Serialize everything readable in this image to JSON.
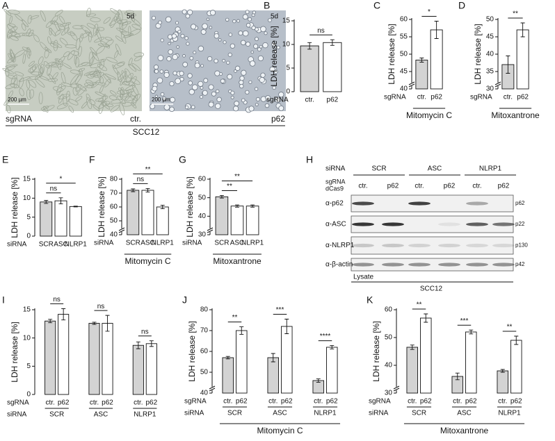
{
  "micrograph": {
    "panel": "A",
    "images": [
      {
        "time": "5d",
        "scale": "200 µm"
      },
      {
        "time": "5d",
        "scale": "200 µm"
      }
    ],
    "row_label": "sgRNA",
    "labels": [
      "ctr.",
      "p62"
    ],
    "cell_line": "SCC12"
  },
  "blot": {
    "panel": "H",
    "sirna_label": "siRNA",
    "sirna": [
      "SCR",
      "ASC",
      "NLRP1"
    ],
    "sgrna_label": [
      "sgRNA",
      "dCas9"
    ],
    "sgrna": [
      "ctr.",
      "p62",
      "ctr.",
      "p62",
      "ctr.",
      "p62"
    ],
    "rows": [
      {
        "antibody": "α-p62",
        "size": "p62"
      },
      {
        "antibody": "α-ASC",
        "size": "p22"
      },
      {
        "antibody": "α-NLRP1",
        "size": "p130"
      },
      {
        "antibody": "α-β-actin",
        "size": "p42"
      }
    ],
    "fraction": "Lysate",
    "cell_line": "SCC12"
  },
  "chart_data": [
    {
      "type": "bar",
      "panel": "B",
      "ylabel": "LDH release [%]",
      "row_label": "sgRNA",
      "categories": [
        "ctr.",
        "p62"
      ],
      "values": [
        9.7,
        10.4
      ],
      "errors": [
        0.7,
        0.6
      ],
      "colors": [
        "#d3d3d3",
        "#ffffff"
      ],
      "ylim": [
        0,
        15
      ],
      "yticks": [
        0,
        5,
        10,
        15
      ],
      "annotations": [
        "ns"
      ]
    },
    {
      "type": "bar",
      "panel": "C",
      "ylabel": "LDH release [%]",
      "row_label": "sgRNA",
      "categories": [
        "ctr.",
        "p62"
      ],
      "values": [
        48.3,
        57
      ],
      "errors": [
        0.6,
        2.5
      ],
      "colors": [
        "#d3d3d3",
        "#ffffff"
      ],
      "ylim": [
        40,
        60
      ],
      "yticks": [
        40,
        45,
        50,
        55,
        60
      ],
      "axis_break": true,
      "caption": "Mitomycin C",
      "annotations": [
        "*"
      ]
    },
    {
      "type": "bar",
      "panel": "D",
      "ylabel": "LDH release [%]",
      "row_label": "sgRNA",
      "categories": [
        "ctr.",
        "p62"
      ],
      "values": [
        37,
        47
      ],
      "errors": [
        2.5,
        2
      ],
      "colors": [
        "#d3d3d3",
        "#ffffff"
      ],
      "ylim": [
        30,
        50
      ],
      "yticks": [
        30,
        35,
        40,
        45,
        50
      ],
      "axis_break": true,
      "caption": "Mitoxantrone",
      "annotations": [
        "**"
      ]
    },
    {
      "type": "bar",
      "panel": "E",
      "ylabel": "LDH release [%]",
      "row_label": "siRNA",
      "categories": [
        "SCR",
        "ASC",
        "NLRP1"
      ],
      "values": [
        9,
        9.3,
        7.8
      ],
      "errors": [
        0.4,
        0.8,
        0.1
      ],
      "colors": [
        "#d3d3d3",
        "#ffffff",
        "#ffffff"
      ],
      "ylim": [
        0,
        15
      ],
      "yticks": [
        0,
        5,
        10,
        15
      ],
      "annotations": [
        "ns",
        "*"
      ]
    },
    {
      "type": "bar",
      "panel": "F",
      "ylabel": "LDH release [%]",
      "row_label": "siRNA",
      "categories": [
        "SCR",
        "ASC",
        "NLRP1"
      ],
      "values": [
        72,
        72,
        60
      ],
      "errors": [
        1,
        1.3,
        1.3
      ],
      "colors": [
        "#d3d3d3",
        "#ffffff",
        "#ffffff"
      ],
      "ylim": [
        40,
        80
      ],
      "yticks": [
        40,
        50,
        60,
        70,
        80
      ],
      "axis_break": true,
      "caption": "Mitomycin C",
      "annotations": [
        "ns",
        "**"
      ]
    },
    {
      "type": "bar",
      "panel": "G",
      "ylabel": "LDH release [%]",
      "row_label": "siRNA",
      "categories": [
        "SCR",
        "ASC",
        "NLRP1"
      ],
      "values": [
        50.5,
        45.5,
        45.5
      ],
      "errors": [
        0.7,
        0.6,
        0.6
      ],
      "colors": [
        "#d3d3d3",
        "#ffffff",
        "#ffffff"
      ],
      "ylim": [
        30,
        60
      ],
      "yticks": [
        30,
        40,
        50,
        60
      ],
      "axis_break": true,
      "caption": "Mitoxantrone",
      "annotations": [
        "**",
        "**"
      ]
    },
    {
      "type": "bar",
      "panel": "I",
      "ylabel": "LDH release [%]",
      "row_label": "sgRNA",
      "group_label": "siRNA",
      "groups": [
        "SCR",
        "ASC",
        "NLRP1"
      ],
      "categories": [
        "ctr.",
        "p62",
        "ctr.",
        "p62",
        "ctr.",
        "p62"
      ],
      "values": [
        13,
        14.2,
        12.6,
        12.6,
        8.7,
        9
      ],
      "errors": [
        0.3,
        1,
        0.2,
        1.4,
        0.6,
        0.5
      ],
      "colors": [
        "#d3d3d3",
        "#ffffff",
        "#d3d3d3",
        "#ffffff",
        "#d3d3d3",
        "#ffffff"
      ],
      "ylim": [
        0,
        15
      ],
      "yticks": [
        0,
        5,
        10,
        15
      ],
      "annotations": [
        "ns",
        "ns",
        "ns"
      ]
    },
    {
      "type": "bar",
      "panel": "J",
      "ylabel": "LDH release [%]",
      "row_label": "sgRNA",
      "group_label": "siRNA",
      "groups": [
        "SCR",
        "ASC",
        "NLRP1"
      ],
      "categories": [
        "ctr.",
        "p62",
        "ctr.",
        "p62",
        "ctr.",
        "p62"
      ],
      "values": [
        57,
        70,
        57,
        72,
        46,
        62
      ],
      "errors": [
        0.6,
        1.8,
        2,
        3.5,
        0.8,
        0.8
      ],
      "colors": [
        "#d3d3d3",
        "#ffffff",
        "#d3d3d3",
        "#ffffff",
        "#d3d3d3",
        "#ffffff"
      ],
      "ylim": [
        40,
        80
      ],
      "yticks": [
        40,
        50,
        60,
        70,
        80
      ],
      "axis_break": true,
      "caption": "Mitomycin C",
      "annotations": [
        "**",
        "***",
        "****"
      ]
    },
    {
      "type": "bar",
      "panel": "K",
      "ylabel": "LDH release [%]",
      "row_label": "sgRNA",
      "group_label": "siRNA",
      "groups": [
        "SCR",
        "ASC",
        "NLRP1"
      ],
      "categories": [
        "ctr.",
        "p62",
        "ctr.",
        "p62",
        "ctr.",
        "p62"
      ],
      "values": [
        46.5,
        57,
        36,
        52,
        38,
        49
      ],
      "errors": [
        0.8,
        1.5,
        1.2,
        0.7,
        0.5,
        1.5
      ],
      "colors": [
        "#d3d3d3",
        "#ffffff",
        "#d3d3d3",
        "#ffffff",
        "#d3d3d3",
        "#ffffff"
      ],
      "ylim": [
        30,
        60
      ],
      "yticks": [
        30,
        40,
        50,
        60
      ],
      "axis_break": true,
      "caption": "Mitoxantrone",
      "annotations": [
        "**",
        "***",
        "**"
      ]
    }
  ]
}
